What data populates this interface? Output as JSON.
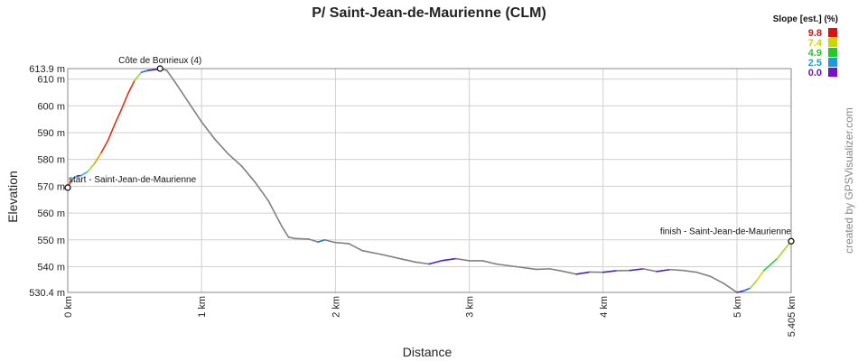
{
  "chart_data": {
    "type": "line",
    "title": "P/ Saint-Jean-de-Maurienne (CLM)",
    "xlabel": "Distance",
    "ylabel": "Elevation",
    "xlim": [
      0,
      5.405
    ],
    "ylim": [
      530.4,
      613.9
    ],
    "grid": true,
    "y_ticks": [
      {
        "value": 530.4,
        "label": "530.4 m"
      },
      {
        "value": 540,
        "label": "540 m"
      },
      {
        "value": 550,
        "label": "550 m"
      },
      {
        "value": 560,
        "label": "560 m"
      },
      {
        "value": 570,
        "label": "570 m"
      },
      {
        "value": 580,
        "label": "580 m"
      },
      {
        "value": 590,
        "label": "590 m"
      },
      {
        "value": 600,
        "label": "600 m"
      },
      {
        "value": 610,
        "label": "610 m"
      },
      {
        "value": 613.9,
        "label": "613.9 m"
      }
    ],
    "x_ticks": [
      {
        "value": 0,
        "label": "0 km"
      },
      {
        "value": 1,
        "label": "1 km"
      },
      {
        "value": 2,
        "label": "2 km"
      },
      {
        "value": 3,
        "label": "3 km"
      },
      {
        "value": 4,
        "label": "4 km"
      },
      {
        "value": 5,
        "label": "5 km"
      },
      {
        "value": 5.405,
        "label": "5.405 km"
      }
    ],
    "legend": {
      "title": "Slope [est.] (%)",
      "position": "top-right",
      "entries": [
        {
          "label": "9.8",
          "color": "#dd1111"
        },
        {
          "label": "7.4",
          "color": "#c8d800"
        },
        {
          "label": "4.9",
          "color": "#22cc22"
        },
        {
          "label": "2.5",
          "color": "#2299dd"
        },
        {
          "label": "0.0",
          "color": "#7711cc"
        }
      ]
    },
    "waypoints": [
      {
        "label": "start - Saint-Jean-de-Maurienne",
        "x": 0.0,
        "y": 569.5
      },
      {
        "label": "Côte de Bonrieux (4)",
        "x": 0.69,
        "y": 613.9
      },
      {
        "label": "finish - Saint-Jean-de-Maurienne",
        "x": 5.405,
        "y": 549.5
      }
    ],
    "series": [
      {
        "x": [
          0.0,
          0.03,
          0.07,
          0.1,
          0.15,
          0.2,
          0.25,
          0.3,
          0.35,
          0.4,
          0.45,
          0.5,
          0.55,
          0.6,
          0.65,
          0.69,
          0.74,
          0.8,
          0.9,
          1.0,
          1.1,
          1.2,
          1.3,
          1.4,
          1.5,
          1.6,
          1.65,
          1.7,
          1.8,
          1.87,
          1.92,
          2.0,
          2.1,
          2.2,
          2.35,
          2.5,
          2.6,
          2.7,
          2.8,
          2.9,
          3.0,
          3.1,
          3.2,
          3.35,
          3.5,
          3.6,
          3.7,
          3.8,
          3.9,
          4.0,
          4.1,
          4.2,
          4.3,
          4.4,
          4.5,
          4.6,
          4.7,
          4.8,
          4.9,
          5.0,
          5.05,
          5.1,
          5.15,
          5.2,
          5.3,
          5.405
        ],
        "y": [
          569.5,
          572.5,
          573.8,
          574.0,
          575.5,
          578.5,
          582.5,
          587.0,
          593.0,
          598.5,
          604.5,
          609.5,
          612.5,
          613.2,
          613.5,
          613.9,
          613.2,
          609.0,
          601.5,
          594.0,
          587.5,
          582.0,
          577.5,
          571.5,
          564.5,
          555.0,
          551.0,
          550.5,
          550.3,
          549.2,
          550.0,
          549.0,
          548.6,
          546.0,
          544.5,
          542.8,
          541.7,
          541.0,
          542.3,
          543.0,
          542.2,
          542.2,
          541.0,
          540.0,
          539.0,
          539.2,
          538.3,
          537.2,
          538.0,
          537.9,
          538.5,
          538.6,
          539.2,
          538.2,
          538.9,
          538.6,
          537.9,
          536.4,
          533.8,
          530.4,
          531.0,
          532.0,
          535.0,
          538.5,
          543.0,
          549.5
        ]
      }
    ]
  },
  "credit": "created by GPSVisualizer.com"
}
